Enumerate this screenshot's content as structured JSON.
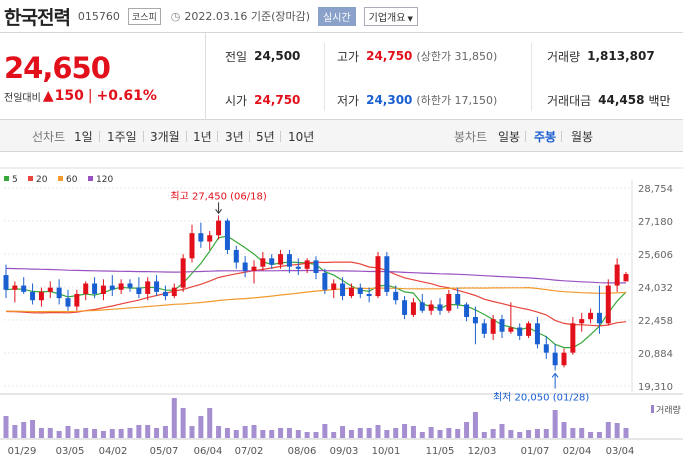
{
  "header": {
    "name": "한국전력",
    "code": "015760",
    "market": "코스피",
    "date": "2022.03.16 기준(장마감)",
    "realtime_label": "실시간",
    "info_label": "기업개요"
  },
  "quote": {
    "price": "24,650",
    "change_label": "전일대비",
    "change": "150",
    "change_pct": "+0.61%",
    "prev_label": "전일",
    "prev": "24,500",
    "high_label": "고가",
    "high": "24,750",
    "upper_limit": "(상한가 31,850)",
    "volume_label": "거래량",
    "volume": "1,813,807",
    "open_label": "시가",
    "open": "24,750",
    "low_label": "저가",
    "low": "24,300",
    "lower_limit": "(하한가 17,150)",
    "amount_label": "거래대금",
    "amount": "44,458",
    "amount_unit": "백만"
  },
  "tabs": {
    "line_label": "선차트",
    "periods": [
      "1일",
      "1주일",
      "3개월",
      "1년",
      "3년",
      "5년",
      "10년"
    ],
    "candle_label": "봉차트",
    "candles": [
      "일봉",
      "주봉",
      "월봉"
    ],
    "selected_candle": "주봉"
  },
  "chart_data": {
    "type": "candlestick",
    "legend": [
      {
        "name": "5",
        "color": "#36a838"
      },
      {
        "name": "20",
        "color": "#e8453c"
      },
      {
        "name": "60",
        "color": "#f29a2e"
      },
      {
        "name": "120",
        "color": "#9a52c2"
      }
    ],
    "y_ticks": [
      28754,
      27180,
      25606,
      24032,
      22458,
      20884,
      19310
    ],
    "y_tick_labels": [
      "28,754",
      "27,180",
      "25,606",
      "24,032",
      "22,458",
      "20,884",
      "19,310"
    ],
    "ylim": [
      19310,
      28754
    ],
    "x_tick_labels": [
      "01/29",
      "03/05",
      "04/02",
      "05/07",
      "06/04",
      "07/02",
      "08/06",
      "09/03",
      "10/01",
      "11/05",
      "12/03",
      "01/07",
      "02/04",
      "03/04"
    ],
    "max_annotation": "최고 27,450 (06/18)",
    "min_annotation": "최저 20,050 (01/28)",
    "volume_label": "거래량",
    "candles": [
      [
        24600,
        25100,
        23500,
        23900
      ],
      [
        23900,
        24300,
        23300,
        24100
      ],
      [
        24100,
        24500,
        23700,
        23800
      ],
      [
        23800,
        24200,
        23200,
        23400
      ],
      [
        23400,
        24000,
        23100,
        23800
      ],
      [
        23800,
        24300,
        23500,
        24000
      ],
      [
        24000,
        24400,
        23200,
        23500
      ],
      [
        23500,
        23900,
        22900,
        23100
      ],
      [
        23100,
        23900,
        22900,
        23700
      ],
      [
        23700,
        24300,
        23400,
        24200
      ],
      [
        24200,
        24500,
        23500,
        23700
      ],
      [
        23700,
        24400,
        23400,
        24100
      ],
      [
        24100,
        24600,
        23600,
        23900
      ],
      [
        23900,
        24400,
        23700,
        24200
      ],
      [
        24200,
        24400,
        23800,
        24000
      ],
      [
        24000,
        24500,
        23500,
        23700
      ],
      [
        23700,
        24500,
        23400,
        24300
      ],
      [
        24300,
        24600,
        23600,
        23800
      ],
      [
        23800,
        24100,
        23400,
        23600
      ],
      [
        23600,
        24200,
        23500,
        24000
      ],
      [
        24000,
        25600,
        23800,
        25400
      ],
      [
        25400,
        27000,
        25200,
        26600
      ],
      [
        26600,
        27100,
        25900,
        26200
      ],
      [
        26200,
        26700,
        25800,
        26500
      ],
      [
        26500,
        27450,
        26300,
        27200
      ],
      [
        27200,
        27300,
        25600,
        25800
      ],
      [
        25800,
        26000,
        24900,
        25200
      ],
      [
        25200,
        25500,
        24500,
        24800
      ],
      [
        24800,
        25300,
        24200,
        25000
      ],
      [
        25000,
        25700,
        24800,
        25400
      ],
      [
        25400,
        25600,
        24900,
        25100
      ],
      [
        25100,
        25800,
        24900,
        25600
      ],
      [
        25600,
        25800,
        24700,
        25000
      ],
      [
        25000,
        25400,
        24600,
        24900
      ],
      [
        24900,
        25400,
        24700,
        25300
      ],
      [
        25300,
        25500,
        24400,
        24700
      ],
      [
        24700,
        24900,
        23700,
        23900
      ],
      [
        23900,
        24400,
        23500,
        24200
      ],
      [
        24200,
        24500,
        23400,
        23600
      ],
      [
        23600,
        24200,
        23500,
        24000
      ],
      [
        24000,
        24200,
        23500,
        23700
      ],
      [
        23700,
        24000,
        23300,
        23600
      ],
      [
        23600,
        25700,
        23500,
        25500
      ],
      [
        25500,
        25700,
        23600,
        23800
      ],
      [
        23800,
        24100,
        23200,
        23400
      ],
      [
        23400,
        23600,
        22500,
        22700
      ],
      [
        22700,
        23500,
        22600,
        23300
      ],
      [
        23300,
        23700,
        22800,
        22900
      ],
      [
        22900,
        23400,
        22700,
        23200
      ],
      [
        23200,
        23500,
        22700,
        22900
      ],
      [
        22900,
        23900,
        22800,
        23700
      ],
      [
        23700,
        24000,
        23000,
        23200
      ],
      [
        23200,
        23300,
        22400,
        22600
      ],
      [
        22600,
        23100,
        21300,
        22300
      ],
      [
        22300,
        22500,
        21600,
        21800
      ],
      [
        21800,
        22700,
        21500,
        22500
      ],
      [
        22500,
        22700,
        21600,
        21900
      ],
      [
        21900,
        23300,
        21800,
        22100
      ],
      [
        22100,
        22300,
        21500,
        21700
      ],
      [
        21700,
        22400,
        21600,
        22300
      ],
      [
        22300,
        22600,
        21100,
        21300
      ],
      [
        21300,
        21700,
        20600,
        20900
      ],
      [
        20900,
        21300,
        20050,
        20300
      ],
      [
        20300,
        21100,
        20200,
        20900
      ],
      [
        20900,
        22600,
        20800,
        22300
      ],
      [
        22300,
        22800,
        21900,
        22500
      ],
      [
        22500,
        23000,
        22300,
        22800
      ],
      [
        22800,
        24100,
        21800,
        22300
      ],
      [
        22300,
        24400,
        22200,
        24100
      ],
      [
        24100,
        25400,
        23800,
        25100
      ],
      [
        24300,
        24750,
        24300,
        24650
      ]
    ],
    "volume": [
      22,
      13,
      16,
      18,
      10,
      10,
      7,
      12,
      9,
      10,
      9,
      7,
      9,
      9,
      10,
      13,
      13,
      10,
      12,
      40,
      30,
      12,
      22,
      30,
      12,
      10,
      8,
      12,
      13,
      8,
      8,
      10,
      10,
      8,
      6,
      6,
      14,
      6,
      12,
      8,
      10,
      10,
      13,
      8,
      10,
      14,
      12,
      6,
      11,
      8,
      10,
      9,
      16,
      26,
      6,
      9,
      14,
      8,
      6,
      8,
      9,
      9,
      28,
      16,
      10,
      10,
      6,
      6,
      16,
      15,
      10
    ]
  }
}
